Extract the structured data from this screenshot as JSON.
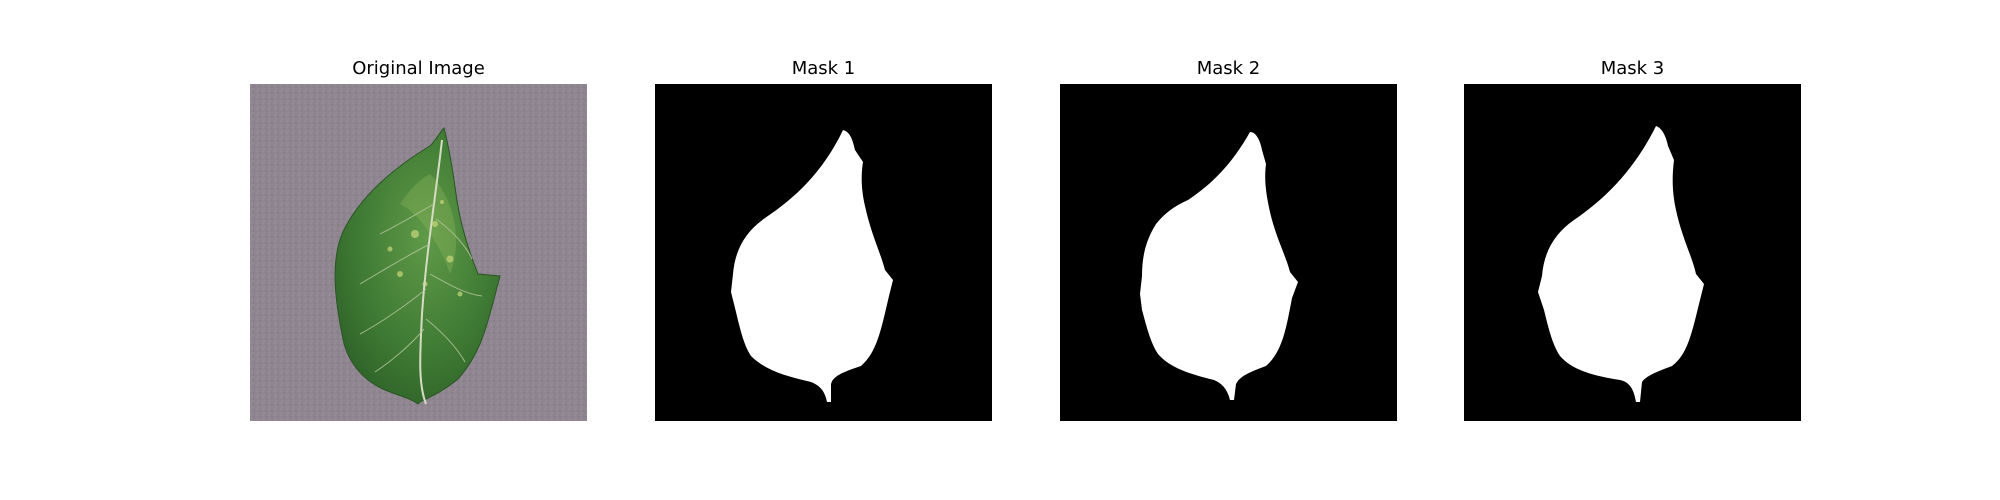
{
  "figure": {
    "panels": [
      {
        "title": "Original Image",
        "kind": "photo"
      },
      {
        "title": "Mask 1",
        "kind": "mask"
      },
      {
        "title": "Mask 2",
        "kind": "mask"
      },
      {
        "title": "Mask 3",
        "kind": "mask"
      }
    ]
  },
  "colors": {
    "background": "#ffffff",
    "mask_background": "#000000",
    "mask_foreground": "#ffffff",
    "photo_background": "#8f8590",
    "leaf_dark": "#2f6a2c",
    "leaf_mid": "#4f8a3e",
    "leaf_light": "#a9c96b",
    "vein": "#d9dcc7"
  }
}
